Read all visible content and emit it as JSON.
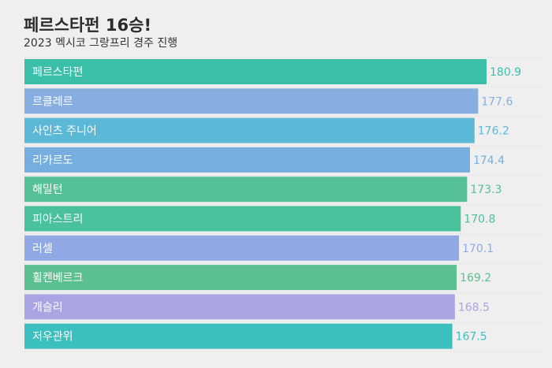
{
  "chart_data": {
    "type": "bar",
    "orientation": "horizontal",
    "title": "페르스타펀 16승!",
    "subtitle": "2023 멕시코 그랑프리 경주 진행",
    "categories": [
      "페르스타펀",
      "르클레르",
      "사인츠 주니어",
      "리카르도",
      "해밀턴",
      "피아스트리",
      "러셀",
      "휠켄베르크",
      "개슬리",
      "저우관위"
    ],
    "values": [
      180.9,
      177.6,
      176.2,
      174.4,
      173.3,
      170.8,
      170.1,
      169.2,
      168.5,
      167.5
    ],
    "colors": [
      "#3cbfa9",
      "#86aee0",
      "#5bb8d6",
      "#76afdf",
      "#55c096",
      "#48c19c",
      "#90a8e4",
      "#5cbf8f",
      "#a9a4e2",
      "#3cbfbf"
    ],
    "xlim": [
      0,
      185
    ],
    "grid": true
  }
}
